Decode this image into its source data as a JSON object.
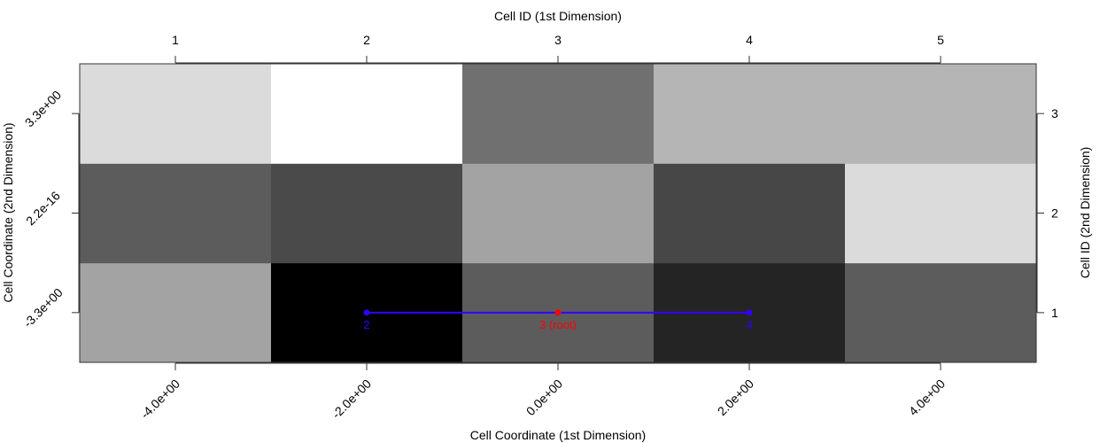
{
  "chart_data": {
    "type": "heatmap",
    "colormap": "grayscale",
    "x_top_label": "Cell ID (1st Dimension)",
    "x_bottom_label": "Cell Coordinate (1st Dimension)",
    "y_left_label": "Cell Coordinate (2nd Dimension)",
    "y_right_label": "Cell ID (2nd Dimension)",
    "x_ids": [
      "1",
      "2",
      "3",
      "4",
      "5"
    ],
    "y_ids": [
      "1",
      "2",
      "3"
    ],
    "x_coord_ticks": [
      "-4.0e+00",
      "-2.0e+00",
      "0.0e+00",
      "2.0e+00",
      "4.0e+00"
    ],
    "y_coord_ticks": [
      "-3.3e+00",
      "2.2e-16",
      "3.3e+00"
    ],
    "cell_values": [
      [
        0.64,
        0.0,
        0.36,
        0.14,
        0.36
      ],
      [
        0.36,
        0.29,
        0.64,
        0.28,
        0.86
      ],
      [
        0.86,
        1.0,
        0.44,
        0.71,
        0.71
      ]
    ],
    "path": {
      "nodes": [
        {
          "label": "2",
          "x_id": 2,
          "y_id": 1,
          "role": "neighbor"
        },
        {
          "label": "3 (root)",
          "x_id": 3,
          "y_id": 1,
          "role": "root"
        },
        {
          "label": "4",
          "x_id": 4,
          "y_id": 1,
          "role": "neighbor"
        }
      ],
      "edge_color": "#3300ff",
      "root_color": "#ff0000"
    }
  }
}
